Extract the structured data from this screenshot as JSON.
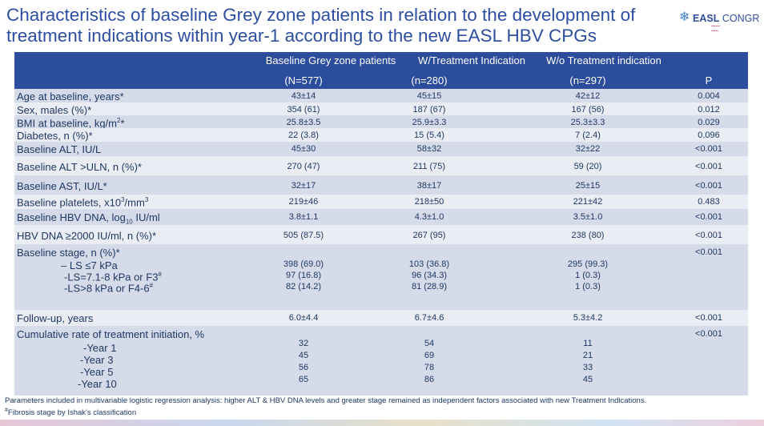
{
  "title_line1": "Characteristics of baseline Grey zone patients in relation to the development of",
  "title_line2": "treatment indications within year-1 according to the new EASL HBV CPGs",
  "logo": {
    "icon": "snowflake-icon",
    "brand": "EASL",
    "text": "CONGR"
  },
  "colors": {
    "header": "#2c4c9c",
    "band_odd": "#d5dbe8",
    "band_even": "#eaedf4",
    "title": "#2d4ea0",
    "text": "#1f3864"
  },
  "table": {
    "header_top": [
      "Baseline Grey zone patients",
      "W/Treatment Indication",
      "W/o Treatment indication"
    ],
    "header_bottom": [
      "(N=577)",
      "(n=280)",
      "(n=297)",
      "P"
    ],
    "rows": [
      {
        "label": "Age at baseline, years*",
        "c1": "43±14",
        "c2": "45±15",
        "c3": "42±12",
        "p": "0.004"
      },
      {
        "label": "Sex, males (%)*",
        "c1": "354 (61)",
        "c2": "187 (67)",
        "c3": "167 (56)",
        "p": "0.012"
      },
      {
        "label": "BMI at baseline, kg/m",
        "sup": "2",
        "after": "*",
        "c1": "25.8±3.5",
        "c2": "25.9±3.3",
        "c3": "25.3±3.3",
        "p": "0.029"
      },
      {
        "label": "Diabetes, n (%)*",
        "c1": "22 (3.8)",
        "c2": "15 (5.4)",
        "c3": "7 (2.4)",
        "p": "0.096"
      },
      {
        "label": "Baseline ALT, IU/L",
        "c1": "45±30",
        "c2": "58±32",
        "c3": "32±22",
        "p": "<0.001"
      },
      {
        "label": "Baseline ALT >ULN, n (%)*",
        "c1": "270 (47)",
        "c2": "211 (75)",
        "c3": "59 (20)",
        "p": "<0.001"
      },
      {
        "label": "Baseline AST, IU/L*",
        "c1": "32±17",
        "c2": "38±17",
        "c3": "25±15",
        "p": "<0.001"
      },
      {
        "label": "Baseline platelets, x10",
        "sup": "3",
        "after": "/mm",
        "sup2": "3",
        "c1": "219±46",
        "c2": "218±50",
        "c3": "221±42",
        "p": "0.483"
      },
      {
        "label": "Baseline HBV DNA, log",
        "sub": "10",
        "after": " IU/ml",
        "c1": "3.8±1.1",
        "c2": "4.3±1.0",
        "c3": "3.5±1.0",
        "p": "<0.001"
      },
      {
        "label": "HBV DNA ≥2000 IU/ml, n (%)*",
        "c1": "505 (87.5)",
        "c2": "267 (95)",
        "c3": "238 (80)",
        "p": "<0.001"
      },
      {
        "label": "Baseline stage, n (%)*",
        "p": "<0.001",
        "subs": [
          {
            "label": "– LS ≤7 kPa",
            "c1": "398 (69.0)",
            "c2": "103 (36.8)",
            "c3": "295 (99.3)"
          },
          {
            "label": "-LS=7.1-8 kPa or F3",
            "sup": "#",
            "c1": "97 (16.8)",
            "c2": "96 (34.3)",
            "c3": "1 (0.3)"
          },
          {
            "label": "-LS>8 kPa or F4-6",
            "sup": "#",
            "c1": "82 (14.2)",
            "c2": "81 (28.9)",
            "c3": "1 (0.3)"
          }
        ]
      },
      {
        "label": "Follow-up, years",
        "c1": "6.0±4.4",
        "c2": "6.7±4.6",
        "c3": "5.3±4.2",
        "p": "<0.001"
      },
      {
        "label": "Cumulative rate of treatment initiation, %",
        "p": "<0.001",
        "subs": [
          {
            "label": "-Year 1",
            "c1": "32",
            "c2": "54",
            "c3": "11"
          },
          {
            "label": "-Year 3",
            "c1": "45",
            "c2": "69",
            "c3": "21"
          },
          {
            "label": "-Year 5",
            "c1": "56",
            "c2": "78",
            "c3": "33"
          },
          {
            "label": "-Year 10",
            "c1": "65",
            "c2": "86",
            "c3": "45"
          }
        ]
      }
    ]
  },
  "footnote1": "Parameters included in multivariable logistic regression analysis: higher ALT & HBV DNA levels and greater stage remained as independent factors associated with new Treatment Indications.",
  "footnote2_mark": "#",
  "footnote2": "Fibrosis stage by Ishak's classification"
}
